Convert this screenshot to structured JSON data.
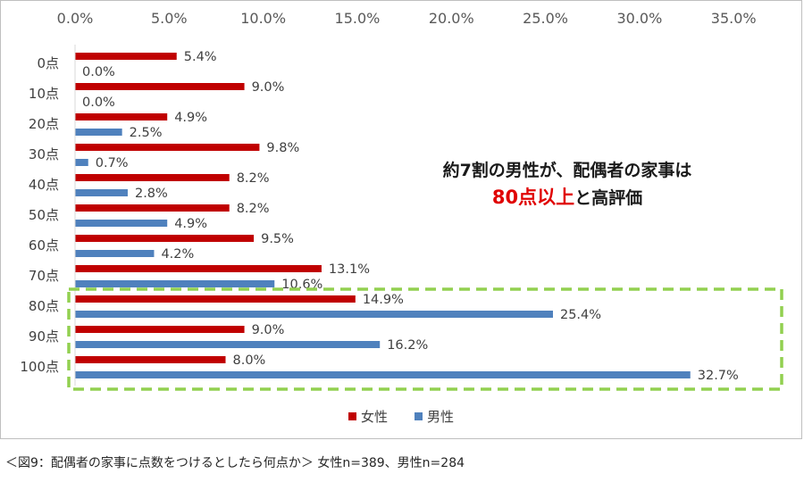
{
  "chart_data": {
    "type": "bar",
    "orientation": "horizontal",
    "categories": [
      "0点",
      "10点",
      "20点",
      "30点",
      "40点",
      "50点",
      "60点",
      "70点",
      "80点",
      "90点",
      "100点"
    ],
    "series": [
      {
        "name": "女性",
        "color": "#c00000",
        "values": [
          5.4,
          9.0,
          4.9,
          9.8,
          8.2,
          8.2,
          9.5,
          13.1,
          14.9,
          9.0,
          8.0
        ],
        "labels": [
          "5.4%",
          "9.0%",
          "4.9%",
          "9.8%",
          "8.2%",
          "8.2%",
          "9.5%",
          "13.1%",
          "14.9%",
          "9.0%",
          "8.0%"
        ]
      },
      {
        "name": "男性",
        "color": "#4f81bd",
        "values": [
          0.0,
          0.0,
          2.5,
          0.7,
          2.8,
          4.9,
          4.2,
          10.6,
          25.4,
          16.2,
          32.7
        ],
        "labels": [
          "0.0%",
          "0.0%",
          "2.5%",
          "0.7%",
          "2.8%",
          "4.9%",
          "4.2%",
          "10.6%",
          "25.4%",
          "16.2%",
          "32.7%"
        ]
      }
    ],
    "xlim": [
      0,
      35
    ],
    "ticks": [
      "0.0%",
      "5.0%",
      "10.0%",
      "15.0%",
      "20.0%",
      "25.0%",
      "30.0%",
      "35.0%"
    ],
    "tick_values": [
      0,
      5,
      10,
      15,
      20,
      25,
      30,
      35
    ],
    "axis_position": "top",
    "legend": "bottom",
    "grid": false,
    "highlight": {
      "categories": [
        "80点",
        "90点",
        "100点"
      ],
      "border_color": "#92d050",
      "style": "dashed"
    }
  },
  "callout": {
    "line1": "約7割の男性が、配偶者の家事は",
    "highlight": "80点以上",
    "line2_rest": "と高評価"
  },
  "caption": "＜図9：配偶者の家事に点数をつけるとしたら何点か＞ 女性n=389、男性n=284"
}
